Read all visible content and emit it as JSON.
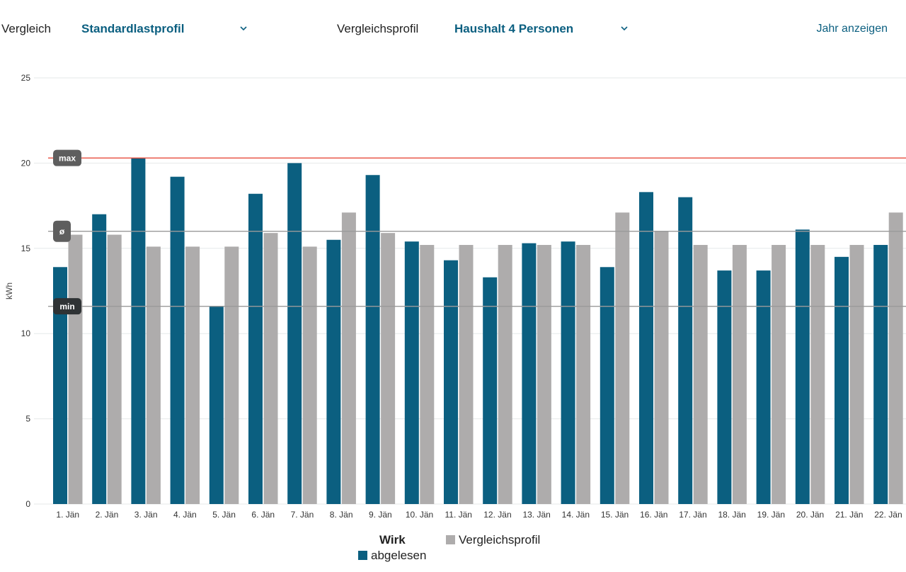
{
  "header": {
    "compare_label": "Vergleich",
    "compare_value": "Standardlastprofil",
    "profile_label": "Vergleichsprofil",
    "profile_value": "Haushalt 4 Personen",
    "year_link": "Jahr anzeigen"
  },
  "colors": {
    "primary": "#0b5f80",
    "secondary": "#aeacac",
    "max_line": "#e74c3c",
    "ref_line": "#9a9a9a",
    "badge": "#5e5e5e",
    "badge_dark": "#2f3335"
  },
  "chart_data": {
    "type": "bar",
    "ylabel": "kWh",
    "ylim": [
      0,
      25
    ],
    "yticks": [
      0,
      5,
      10,
      15,
      20,
      25
    ],
    "grid": true,
    "categories": [
      "1. Jän",
      "2. Jän",
      "3. Jän",
      "4. Jän",
      "5. Jän",
      "6. Jän",
      "7. Jän",
      "8. Jän",
      "9. Jän",
      "10. Jän",
      "11. Jän",
      "12. Jän",
      "13. Jän",
      "14. Jän",
      "15. Jän",
      "16. Jän",
      "17. Jän",
      "18. Jän",
      "19. Jän",
      "20. Jän",
      "21. Jän",
      "22. Jän"
    ],
    "series": [
      {
        "name": "abgelesen",
        "values": [
          13.9,
          17.0,
          20.3,
          19.2,
          11.6,
          18.2,
          20.0,
          15.5,
          19.3,
          15.4,
          14.3,
          13.3,
          15.3,
          15.4,
          13.9,
          18.3,
          18.0,
          13.7,
          13.7,
          16.1,
          14.5,
          15.2
        ]
      },
      {
        "name": "Vergleichsprofil",
        "values": [
          15.8,
          15.8,
          15.1,
          15.1,
          15.1,
          15.9,
          15.1,
          17.1,
          15.9,
          15.2,
          15.2,
          15.2,
          15.2,
          15.2,
          17.1,
          16.0,
          15.2,
          15.2,
          15.2,
          15.2,
          15.2,
          17.1
        ]
      }
    ],
    "reference_lines": [
      {
        "label": "max",
        "value": 20.3
      },
      {
        "label": "ø",
        "value": 16.0
      },
      {
        "label": "min",
        "value": 11.6
      }
    ],
    "legend": {
      "title": "Wirk",
      "position": "bottom-center",
      "items": [
        "abgelesen",
        "Vergleichsprofil"
      ]
    }
  }
}
